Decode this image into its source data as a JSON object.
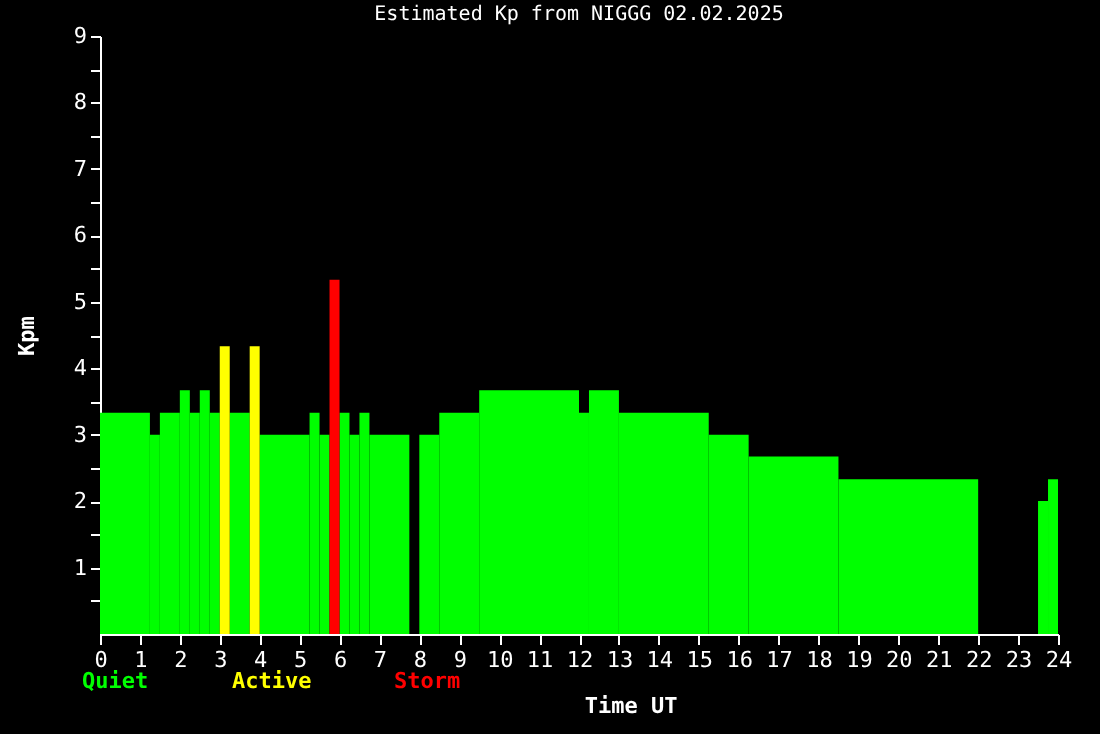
{
  "chart_data": {
    "type": "histogram",
    "title": "Estimated Kp from NIGGG 02.02.2025",
    "xlabel": "Time UT",
    "ylabel": "Kpm",
    "bins": [
      0,
      1.25,
      1.5,
      2,
      2.25,
      2.5,
      2.75,
      3,
      3.25,
      3.75,
      4,
      5.25,
      5.5,
      5.75,
      6,
      6.25,
      6.5,
      6.75,
      7.75,
      8,
      8.5,
      9.5,
      12,
      12.25,
      13,
      15.25,
      16.25,
      18.5,
      22,
      23.5,
      23.75,
      24
    ],
    "series": [
      {
        "name": "Quiet",
        "color": "#00ff00",
        "values": [
          3.33,
          3,
          3.33,
          3.67,
          3.33,
          3.67,
          3.33,
          null,
          3.33,
          null,
          3,
          3.33,
          3,
          null,
          3.33,
          3,
          3.33,
          3,
          null,
          3,
          3.33,
          3.67,
          3.33,
          3.67,
          3.33,
          3,
          2.67,
          2.33,
          null,
          2,
          2.33
        ]
      },
      {
        "name": "Active",
        "color": "#ffff00",
        "values": [
          null,
          null,
          null,
          null,
          null,
          null,
          null,
          4.33,
          null,
          4.33,
          null,
          null,
          null,
          null,
          null,
          null,
          null,
          null,
          null,
          null,
          null,
          null,
          null,
          null,
          null,
          null,
          null,
          null,
          null,
          null,
          null
        ]
      },
      {
        "name": "Storm",
        "color": "#ff0000",
        "values": [
          null,
          null,
          null,
          null,
          null,
          null,
          null,
          null,
          null,
          null,
          null,
          null,
          null,
          5.33,
          null,
          null,
          null,
          null,
          null,
          null,
          null,
          null,
          null,
          null,
          null,
          null,
          null,
          null,
          null,
          null,
          null
        ]
      }
    ],
    "xlim": [
      0,
      24
    ],
    "xticks": [
      0,
      1,
      2,
      3,
      4,
      5,
      6,
      7,
      8,
      9,
      10,
      11,
      12,
      13,
      14,
      15,
      16,
      17,
      18,
      19,
      20,
      21,
      22,
      23,
      24
    ],
    "ylim": [
      0,
      9
    ],
    "yticks": [
      {
        "value": 0.5,
        "label": null
      },
      1,
      {
        "value": 1.5,
        "label": null
      },
      2,
      {
        "value": 2.5,
        "label": null
      },
      3,
      {
        "value": 3.5,
        "label": null
      },
      4,
      {
        "value": 4.5,
        "label": null
      },
      5,
      {
        "value": 5.5,
        "label": null
      },
      6,
      {
        "value": 6.5,
        "label": null
      },
      7,
      {
        "value": 7.5,
        "label": null
      },
      8,
      {
        "value": 8.5,
        "label": null
      },
      9
    ],
    "grid": false,
    "legend": "bottom left"
  }
}
